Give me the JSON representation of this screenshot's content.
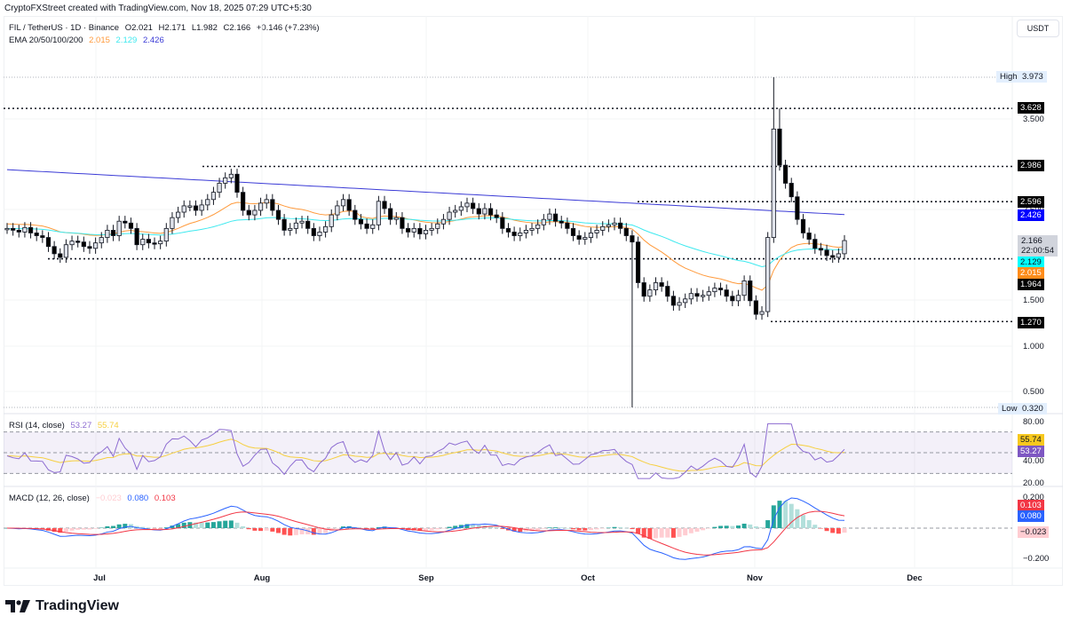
{
  "credit": "CryptoFXStreet created with TradingView.com, Nov 18, 2025 07:29 UTC+5:30",
  "header": {
    "symbol": "FIL / TetherUS · 1D · Binance",
    "open": "O2.021",
    "high": "H2.171",
    "low": "L1.982",
    "close": "C2.166",
    "change": "+0.146 (+7.23%)",
    "ema_label": "EMA 20/50/100/200",
    "ema_values": [
      "2.015",
      "2.129",
      "2.426"
    ],
    "currency": "USDT"
  },
  "price_axis": {
    "ticks": [
      "3.500",
      "2.500",
      "1.500",
      "1.000",
      "0.500"
    ],
    "high_label": "High",
    "high_value": "3.973",
    "low_label": "Low",
    "low_value": "0.320",
    "levels": [
      "3.628",
      "2.986",
      "2.596",
      "1.964",
      "1.270"
    ],
    "ema200_tag": "2.426",
    "ema50_tag": "2.129",
    "ema20_tag": "2.015",
    "last_price": "2.166",
    "countdown": "22:00:54"
  },
  "rsi": {
    "label": "RSI (14, close)",
    "value": "53.27",
    "ma_value": "55.74",
    "ticks": [
      "80.00",
      "40.00",
      "20.00"
    ]
  },
  "macd": {
    "label": "MACD (12, 26, close)",
    "hist": "−0.023",
    "macd": "0.080",
    "signal": "0.103",
    "ticks": [
      "0.200",
      "−0.200"
    ],
    "hist_tag": "−0.023"
  },
  "time_axis": [
    "Jul",
    "Aug",
    "Sep",
    "Oct",
    "Nov",
    "Dec"
  ],
  "brand": "TradingView",
  "colors": {
    "ema20": "#ff9a3c",
    "ema50": "#3ee9ef",
    "ema200": "#3b3bd6",
    "rsi": "#8c6bd1",
    "rsi_ma": "#f6cf3f",
    "macd": "#2962ff",
    "signal": "#f23645",
    "hist_up": "#26a69a",
    "hist_up_light": "#b2dfdb",
    "hist_down": "#ff5252",
    "hist_down_light": "#ffcdd2"
  },
  "chart_data": [
    {
      "type": "candlestick",
      "title": "FIL / TetherUS · 1D · Binance",
      "xlabel": "",
      "ylabel": "USDT",
      "x_ticks": [
        "Jul",
        "Aug",
        "Sep",
        "Oct",
        "Nov",
        "Dec"
      ],
      "ylim": [
        0.32,
        3.973
      ],
      "ohlc_last": {
        "open": 2.021,
        "high": 2.171,
        "low": 1.982,
        "close": 2.166
      },
      "horizontal_levels": [
        3.628,
        2.986,
        2.596,
        1.964,
        1.27
      ],
      "extremes": {
        "high": 3.973,
        "low": 0.32
      },
      "series": [
        {
          "name": "EMA 20",
          "last": 2.015
        },
        {
          "name": "EMA 50",
          "last": 2.129
        },
        {
          "name": "EMA 200",
          "last": 2.426
        }
      ],
      "closes_approx": [
        2.3,
        2.28,
        2.26,
        2.31,
        2.25,
        2.22,
        2.2,
        2.1,
        2.02,
        1.98,
        2.12,
        2.16,
        2.15,
        2.1,
        2.08,
        2.14,
        2.2,
        2.28,
        2.22,
        2.38,
        2.36,
        2.3,
        2.12,
        2.18,
        2.14,
        2.13,
        2.16,
        2.3,
        2.42,
        2.48,
        2.55,
        2.55,
        2.5,
        2.56,
        2.62,
        2.7,
        2.8,
        2.86,
        2.9,
        2.7,
        2.5,
        2.45,
        2.5,
        2.58,
        2.62,
        2.5,
        2.4,
        2.28,
        2.3,
        2.36,
        2.38,
        2.3,
        2.22,
        2.26,
        2.32,
        2.45,
        2.55,
        2.62,
        2.5,
        2.4,
        2.35,
        2.3,
        2.34,
        2.6,
        2.52,
        2.4,
        2.42,
        2.3,
        2.26,
        2.3,
        2.24,
        2.28,
        2.3,
        2.35,
        2.4,
        2.48,
        2.5,
        2.54,
        2.58,
        2.52,
        2.46,
        2.52,
        2.45,
        2.42,
        2.3,
        2.26,
        2.22,
        2.25,
        2.28,
        2.3,
        2.34,
        2.4,
        2.46,
        2.38,
        2.36,
        2.3,
        2.22,
        2.18,
        2.2,
        2.25,
        2.28,
        2.32,
        2.34,
        2.36,
        2.3,
        2.22,
        2.15,
        1.7,
        1.55,
        1.62,
        1.7,
        1.66,
        1.55,
        1.45,
        1.48,
        1.52,
        1.58,
        1.55,
        1.56,
        1.6,
        1.64,
        1.62,
        1.55,
        1.5,
        1.56,
        1.72,
        1.5,
        1.35,
        1.38,
        2.2,
        3.4,
        3.0,
        2.8,
        2.65,
        2.4,
        2.25,
        2.18,
        2.08,
        2.06,
        2.0,
        1.98,
        2.02,
        2.166
      ]
    },
    {
      "type": "line",
      "title": "RSI (14, close)",
      "ylim": [
        20,
        80
      ],
      "y_ticks": [
        80,
        40,
        20
      ],
      "bands": [
        70,
        50,
        30
      ],
      "series": [
        {
          "name": "RSI",
          "last": 53.27
        },
        {
          "name": "RSI MA",
          "last": 55.74
        }
      ]
    },
    {
      "type": "line",
      "title": "MACD (12, 26, close)",
      "ylim": [
        -0.25,
        0.25
      ],
      "y_ticks": [
        0.2,
        -0.2
      ],
      "series": [
        {
          "name": "Histogram",
          "last": -0.023
        },
        {
          "name": "MACD",
          "last": 0.08
        },
        {
          "name": "Signal",
          "last": 0.103
        }
      ]
    }
  ]
}
